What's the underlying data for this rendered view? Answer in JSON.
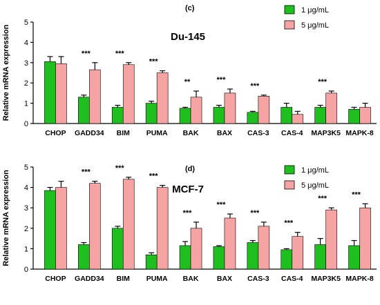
{
  "colors": {
    "series_1": "#1fbf1f",
    "series_2": "#f5a3a3",
    "axis": "#000000"
  },
  "chart_data": [
    {
      "type": "bar",
      "panel_label": "(c)",
      "title": "Du-145",
      "ylabel": "Relative mRNA expression",
      "xlabel": "",
      "ylim": [
        0,
        5
      ],
      "yticks": [
        0,
        1,
        2,
        3,
        4,
        5
      ],
      "grid": false,
      "legend_position": "top-right",
      "categories": [
        "CHOP",
        "GADD34",
        "BIM",
        "PUMA",
        "BAK",
        "BAX",
        "CAS-3",
        "CAS-4",
        "MAP3K5",
        "MAPK-8"
      ],
      "series": [
        {
          "name": "1 μg/mL",
          "values": [
            3.05,
            1.3,
            0.8,
            1.0,
            0.75,
            0.8,
            0.55,
            0.8,
            0.8,
            0.7
          ],
          "errors": [
            0.25,
            0.1,
            0.1,
            0.1,
            0.05,
            0.1,
            0.05,
            0.2,
            0.1,
            0.1
          ]
        },
        {
          "name": "5 μg/mL",
          "values": [
            2.95,
            2.65,
            2.9,
            2.5,
            1.3,
            1.5,
            1.35,
            0.45,
            1.5,
            0.8
          ],
          "errors": [
            0.35,
            0.35,
            0.1,
            0.1,
            0.3,
            0.2,
            0.05,
            0.15,
            0.1,
            0.2
          ]
        }
      ],
      "significance": [
        "",
        "***",
        "***",
        "***",
        "**",
        "***",
        "***",
        "",
        "***",
        ""
      ]
    },
    {
      "type": "bar",
      "panel_label": "(d)",
      "title": "MCF-7",
      "ylabel": "Relative mRNA expression",
      "xlabel": "",
      "ylim": [
        0,
        5
      ],
      "yticks": [
        0,
        1,
        2,
        3,
        4,
        5
      ],
      "grid": false,
      "legend_position": "top-right",
      "categories": [
        "CHOP",
        "GADD34",
        "BIM",
        "PUMA",
        "BAK",
        "BAX",
        "CAS-3",
        "CAS-4",
        "MAP3K5",
        "MAPK-8"
      ],
      "series": [
        {
          "name": "1 μg/mL",
          "values": [
            3.85,
            1.2,
            2.0,
            0.7,
            1.15,
            1.1,
            1.3,
            0.95,
            1.2,
            1.15
          ],
          "errors": [
            0.15,
            0.1,
            0.1,
            0.1,
            0.2,
            0.05,
            0.1,
            0.05,
            0.3,
            0.25
          ]
        },
        {
          "name": "5 μg/mL",
          "values": [
            4.0,
            4.2,
            4.4,
            4.0,
            2.0,
            2.5,
            2.1,
            1.6,
            2.9,
            3.0
          ],
          "errors": [
            0.3,
            0.1,
            0.1,
            0.1,
            0.3,
            0.2,
            0.2,
            0.2,
            0.1,
            0.2
          ]
        }
      ],
      "significance": [
        "",
        "***",
        "***",
        "***",
        "***",
        "***",
        "***",
        "***",
        "***",
        "***"
      ]
    }
  ]
}
